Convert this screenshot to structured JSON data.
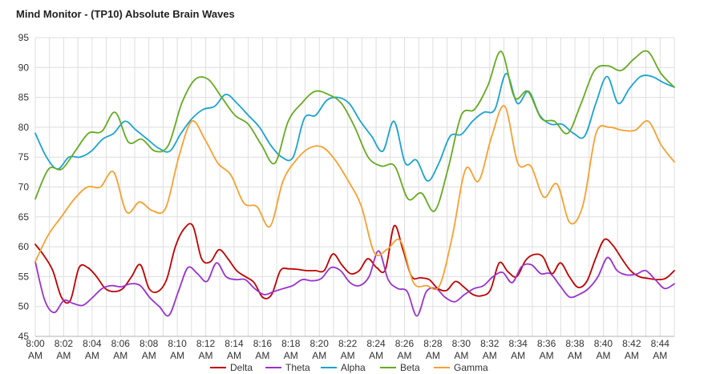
{
  "chart_data": {
    "type": "line",
    "title": "Mind Monitor - (TP10) Absolute Brain Waves",
    "xlabel": "",
    "ylabel": "",
    "ylim": [
      45,
      95
    ],
    "yticks": [
      45,
      50,
      55,
      60,
      65,
      70,
      75,
      80,
      85,
      90,
      95
    ],
    "grid": true,
    "legend_position": "bottom",
    "x_tick_labels": [
      "8:00\nAM",
      "8:02\nAM",
      "8:04\nAM",
      "8:06\nAM",
      "8:08\nAM",
      "8:10\nAM",
      "8:12\nAM",
      "8:14\nAM",
      "8:16\nAM",
      "8:18\nAM",
      "8:20\nAM",
      "8:22\nAM",
      "8:24\nAM",
      "8:26\nAM",
      "8:28\nAM",
      "8:30\nAM",
      "8:32\nAM",
      "8:34\nAM",
      "8:36\nAM",
      "8:38\nAM",
      "8:40\nAM",
      "8:42\nAM",
      "8:44\nAM"
    ],
    "x_minutes": [
      0,
      0.5,
      1,
      1.5,
      2,
      2.5,
      3,
      3.5,
      4,
      4.5,
      5,
      5.5,
      6,
      6.5,
      7,
      7.5,
      8,
      8.5,
      9,
      9.5,
      10,
      10.5,
      11,
      11.5,
      12,
      12.5,
      13,
      13.5,
      14,
      14.5,
      15,
      15.5,
      16,
      16.5,
      17,
      17.5,
      18,
      18.5,
      19,
      19.5,
      20,
      20.5,
      21,
      21.5,
      22,
      22.5,
      23,
      23.5,
      24,
      24.5,
      25,
      25.5,
      26,
      26.5,
      27,
      27.5,
      28,
      28.5,
      29,
      29.5,
      30,
      30.5,
      31,
      31.5,
      32,
      32.5,
      33,
      33.5,
      34,
      34.5,
      35,
      35.5,
      36,
      36.5,
      37,
      37.5,
      38,
      38.5,
      39,
      39.5,
      40,
      40.5,
      41,
      41.5,
      42,
      42.5,
      43,
      43.5,
      44,
      44.5,
      45
    ],
    "series": [
      {
        "name": "Delta",
        "color": "#c00000",
        "values": [
          60.4,
          58.5,
          56,
          51.5,
          51,
          56.5,
          56.5,
          55,
          53,
          52.5,
          53,
          55,
          57,
          53,
          52.5,
          54.5,
          60,
          63,
          63.5,
          58,
          57.5,
          59.5,
          58,
          56,
          55,
          54,
          51.5,
          52,
          56,
          56.3,
          56.2,
          56,
          56,
          56,
          58.8,
          57,
          55.5,
          56,
          58,
          56.5,
          56.2,
          63.5,
          59.5,
          55,
          54.8,
          54.5,
          53,
          52.7,
          54.2,
          53.2,
          52,
          51.8,
          52.8,
          57.3,
          55.8,
          55,
          57.7,
          58.7,
          58.3,
          55.5,
          57.3,
          55,
          53.2,
          54.2,
          58,
          61.2,
          60.2,
          58,
          56,
          55,
          54.7,
          54.5,
          54.7,
          56
        ]
      },
      {
        "name": "Theta",
        "color": "#9933cc",
        "values": [
          57.5,
          51,
          49,
          51,
          50.5,
          50.2,
          51.5,
          53,
          53.5,
          53.3,
          53.8,
          53.5,
          51.5,
          50,
          48.5,
          52.5,
          56.5,
          55.5,
          54.2,
          57.3,
          55,
          54.5,
          54.5,
          53,
          52,
          52.5,
          53,
          53.5,
          54.5,
          54.3,
          54.7,
          56.5,
          56,
          54,
          53.5,
          55,
          59.3,
          54.5,
          53,
          52.5,
          48.4,
          52.5,
          53,
          51.5,
          50.8,
          52,
          53,
          53.5,
          55,
          55.7,
          54,
          56.7,
          57,
          55.5,
          55.5,
          53.5,
          51.6,
          52,
          53,
          55,
          58.2,
          56,
          55.3,
          55.4,
          56,
          54.5,
          53,
          53.8
        ]
      },
      {
        "name": "Alpha",
        "color": "#1aa3d1",
        "values": [
          79,
          75,
          73,
          75,
          75,
          76,
          78,
          79,
          81,
          79.5,
          78,
          76.5,
          76,
          79,
          81.5,
          83,
          83.5,
          85.5,
          84,
          82,
          80,
          77,
          75,
          75,
          81.5,
          82,
          84.5,
          85,
          84,
          81,
          78.5,
          76,
          81,
          74,
          74.5,
          71,
          74,
          78.5,
          78.8,
          81,
          82.5,
          83,
          89,
          84,
          86,
          82,
          80.5,
          80.5,
          79,
          78.5,
          84,
          88.5,
          84,
          86.5,
          88.5,
          88.5,
          87.5,
          86.7
        ]
      },
      {
        "name": "Beta",
        "color": "#66aa22",
        "values": [
          68,
          73,
          73,
          76,
          79,
          79.3,
          82.5,
          77.5,
          78,
          76,
          77,
          84,
          88,
          88,
          85,
          82,
          80.5,
          77,
          74,
          81,
          84,
          86,
          85.5,
          84,
          80,
          75,
          73.5,
          73.5,
          68,
          69,
          66,
          73,
          82,
          83,
          87,
          92.7,
          85,
          86,
          81.5,
          81,
          79,
          84,
          89.5,
          90.3,
          89.5,
          91.5,
          92.7,
          89,
          86.7
        ]
      },
      {
        "name": "Gamma",
        "color": "#f7a030",
        "values": [
          57.5,
          62,
          65,
          68,
          70,
          70,
          72.5,
          65.8,
          67.5,
          66,
          66.5,
          75,
          81,
          78,
          74,
          72,
          67.3,
          66.7,
          63.4,
          71,
          74.5,
          76.5,
          76.7,
          74.5,
          71,
          66.8,
          59,
          59.6,
          61,
          54,
          53.5,
          53.5,
          62,
          73,
          71,
          78.5,
          83.5,
          74,
          73.5,
          68.3,
          70.5,
          64,
          67,
          79,
          80,
          79.5,
          79.5,
          81,
          77,
          74.2
        ]
      }
    ]
  }
}
